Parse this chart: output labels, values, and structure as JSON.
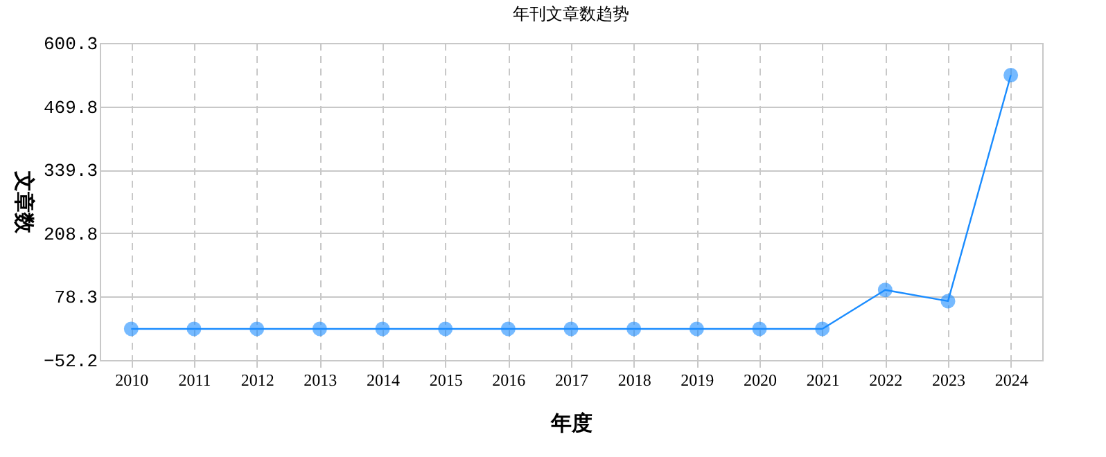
{
  "chart_data": {
    "type": "line",
    "title": "年刊文章数趋势",
    "xlabel": "年度",
    "ylabel": "文章数",
    "categories": [
      "2010",
      "2011",
      "2012",
      "2013",
      "2014",
      "2015",
      "2016",
      "2017",
      "2018",
      "2019",
      "2020",
      "2021",
      "2022",
      "2023",
      "2024"
    ],
    "series": [
      {
        "color": "#1a8cff",
        "values": [
          12,
          12,
          12,
          12,
          12,
          12,
          12,
          12,
          12,
          12,
          12,
          12,
          92,
          69,
          534
        ]
      }
    ],
    "ylim": [
      -52.2,
      600.3
    ],
    "yticks": [
      -52.2,
      78.3,
      208.8,
      339.3,
      469.8,
      600.3
    ],
    "grid": true,
    "marker": "circle",
    "line_style": "solid"
  }
}
